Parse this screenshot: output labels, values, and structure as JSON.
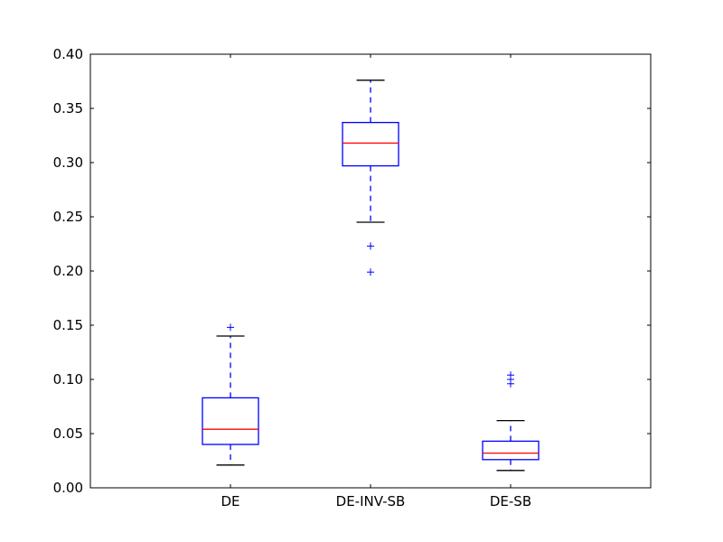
{
  "chart_data": {
    "type": "box",
    "title": "",
    "xlabel": "",
    "ylabel": "",
    "ylim": [
      0,
      0.4
    ],
    "yticks": [
      0.0,
      0.05,
      0.1,
      0.15,
      0.2,
      0.25,
      0.3,
      0.35,
      0.4
    ],
    "ytick_labels": [
      "0.00",
      "0.05",
      "0.10",
      "0.15",
      "0.20",
      "0.25",
      "0.30",
      "0.35",
      "0.40"
    ],
    "categories": [
      "DE",
      "DE-INV-SB",
      "DE-SB"
    ],
    "boxes": [
      {
        "label": "DE",
        "whisker_low": 0.021,
        "q1": 0.04,
        "median": 0.054,
        "q3": 0.083,
        "whisker_high": 0.14,
        "outliers": [
          0.148
        ]
      },
      {
        "label": "DE-INV-SB",
        "whisker_low": 0.245,
        "q1": 0.297,
        "median": 0.318,
        "q3": 0.337,
        "whisker_high": 0.376,
        "outliers": [
          0.223,
          0.199
        ]
      },
      {
        "label": "DE-SB",
        "whisker_low": 0.016,
        "q1": 0.026,
        "median": 0.032,
        "q3": 0.043,
        "whisker_high": 0.062,
        "outliers": [
          0.096,
          0.1,
          0.104
        ]
      }
    ],
    "grid": false,
    "legend": "none",
    "colors": {
      "box": "#0000ff",
      "median": "#ff0000",
      "caps": "#000000",
      "outlier": "#0000ff",
      "axes": "#000000"
    }
  }
}
